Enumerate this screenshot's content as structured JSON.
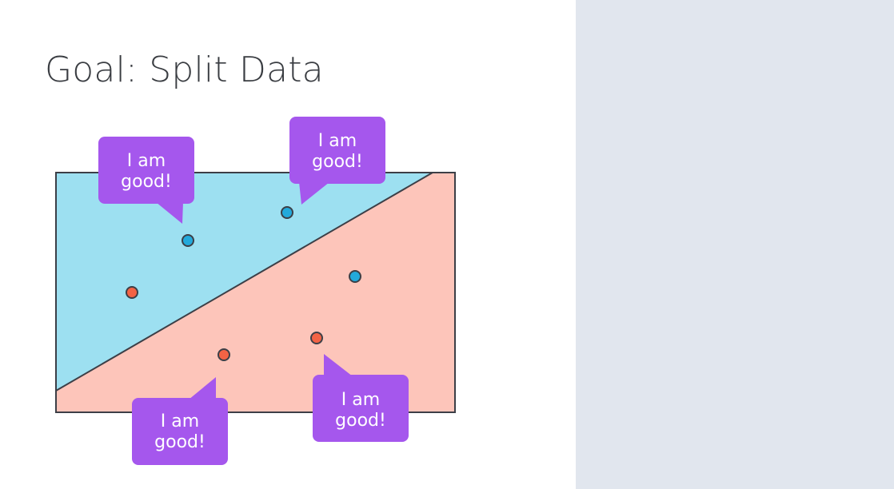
{
  "slide": {
    "title": "Goal: Split Data"
  },
  "colors": {
    "region_top": "#9de0f1",
    "region_bottom": "#fdc5ba",
    "outline": "#3c3f47",
    "point_blue": "#23a9db",
    "point_red": "#f36345",
    "bubble": "#a557ed",
    "side_panel": "#e1e6ee"
  },
  "diagram": {
    "points": [
      {
        "id": "p1",
        "color": "blue"
      },
      {
        "id": "p2",
        "color": "blue"
      },
      {
        "id": "p3",
        "color": "blue"
      },
      {
        "id": "p4",
        "color": "red"
      },
      {
        "id": "p5",
        "color": "red"
      },
      {
        "id": "p6",
        "color": "red"
      }
    ],
    "bubbles": [
      {
        "id": "b1",
        "lines": [
          "I am",
          "good!"
        ],
        "points_to": "p1"
      },
      {
        "id": "b2",
        "lines": [
          "I am",
          "good!"
        ],
        "points_to": "p2"
      },
      {
        "id": "b3",
        "lines": [
          "I am",
          "good!"
        ],
        "points_to": "p5"
      },
      {
        "id": "b4",
        "lines": [
          "I am",
          "good!"
        ],
        "points_to": "p6"
      }
    ]
  }
}
